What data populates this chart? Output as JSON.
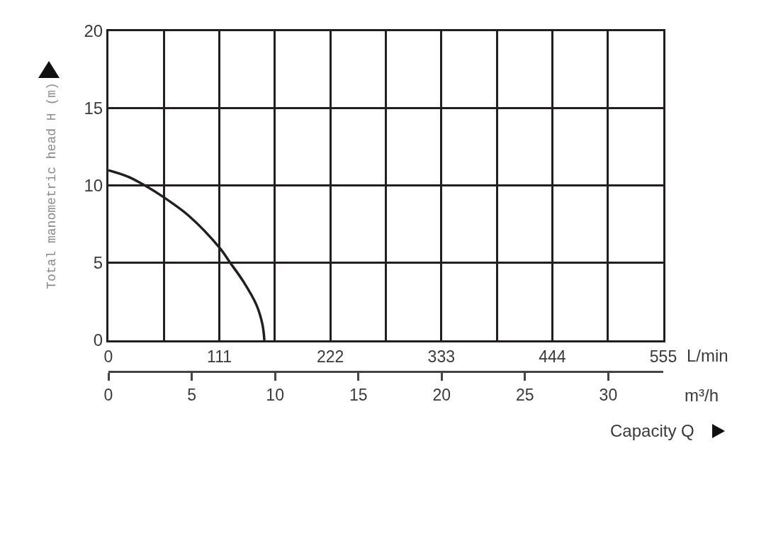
{
  "chart_data": {
    "type": "line",
    "xlabel": "L/min",
    "x2label": "m³/h",
    "ylabel": "Total manometric head H (m)",
    "annotations": [
      "Capacity Q"
    ],
    "x": [
      0,
      19,
      37,
      55.5,
      80.5,
      111,
      122,
      135,
      148,
      154,
      156
    ],
    "series": [
      {
        "color": "#231f20",
        "values": [
          11,
          10.6,
          10,
          9.25,
          8.05,
          6,
          5,
          3.8,
          2.3,
          1.05,
          0
        ]
      }
    ],
    "xlim": [
      0,
      555
    ],
    "xticks": [
      0,
      {
        "value": 55.5,
        "label": null
      },
      111,
      {
        "value": 166.5,
        "label": null
      },
      222,
      {
        "value": 277.5,
        "label": null
      },
      333,
      {
        "value": 388.5,
        "label": null
      },
      444,
      {
        "value": 499.5,
        "label": null
      },
      555
    ],
    "ylim": [
      0,
      20
    ],
    "yticks": [
      0,
      5,
      10,
      15,
      20
    ],
    "x2lim": [
      0,
      33.3
    ],
    "x2ticks": [
      0,
      5,
      10,
      15,
      20,
      25,
      30
    ],
    "grid": true,
    "line_style": "solid"
  }
}
